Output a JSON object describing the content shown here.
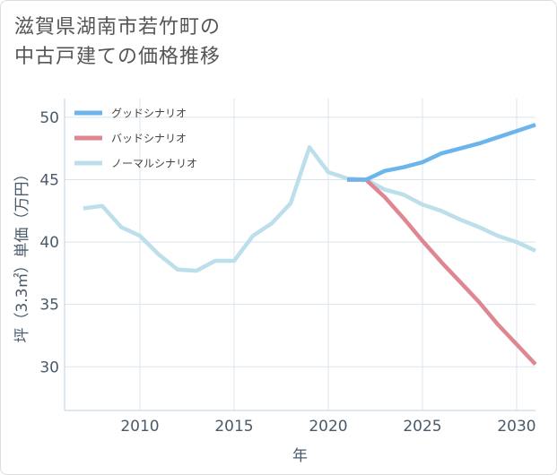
{
  "title": {
    "line1": "滋賀県湖南市若竹町の",
    "line2": "中古戸建ての価格推移"
  },
  "chart_data": {
    "type": "line",
    "xlabel": "年",
    "ylabel": "坪（3.3㎡）単価（万円）",
    "xlim": [
      2006,
      2031
    ],
    "ylim": [
      26.5,
      51.5
    ],
    "x_ticks": [
      2010,
      2015,
      2020,
      2025,
      2030
    ],
    "y_ticks": [
      30,
      35,
      40,
      45,
      50
    ],
    "grid": true,
    "legend_position": "top-left",
    "series": [
      {
        "name": "グッドシナリオ",
        "color": "#6cb4ec",
        "x": [
          2021,
          2022,
          2023,
          2024,
          2025,
          2026,
          2027,
          2028,
          2029,
          2030,
          2031
        ],
        "y": [
          45.0,
          45.0,
          45.7,
          46.0,
          46.4,
          47.1,
          47.5,
          47.9,
          48.4,
          48.9,
          49.4
        ]
      },
      {
        "name": "バッドシナリオ",
        "color": "#de8791",
        "x": [
          2021,
          2022,
          2023,
          2024,
          2025,
          2026,
          2027,
          2028,
          2029,
          2030,
          2031
        ],
        "y": [
          45.0,
          45.0,
          43.6,
          41.9,
          40.1,
          38.4,
          36.8,
          35.2,
          33.4,
          31.8,
          30.2
        ]
      },
      {
        "name": "ノーマルシナリオ",
        "color": "#bcdfeb",
        "x": [
          2007,
          2008,
          2009,
          2010,
          2011,
          2012,
          2013,
          2014,
          2015,
          2016,
          2017,
          2018,
          2019,
          2020,
          2021,
          2022,
          2023,
          2024,
          2025,
          2026,
          2027,
          2028,
          2029,
          2030,
          2031
        ],
        "y": [
          42.7,
          42.9,
          41.2,
          40.5,
          39.0,
          37.8,
          37.7,
          38.5,
          38.5,
          40.5,
          41.5,
          43.1,
          47.6,
          45.6,
          45.1,
          45.0,
          44.2,
          43.8,
          43.0,
          42.5,
          41.8,
          41.2,
          40.5,
          40.0,
          39.3
        ]
      }
    ]
  }
}
